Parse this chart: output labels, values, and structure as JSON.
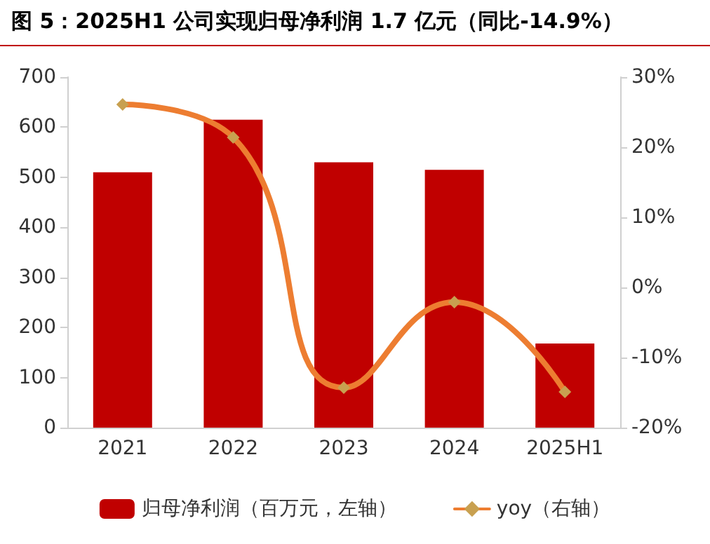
{
  "chart_data": {
    "type": "bar",
    "title": "图 5：2025H1 公司实现归母净利润 1.7 亿元（同比-14.9%）",
    "categories": [
      "2021",
      "2022",
      "2023",
      "2024",
      "2025H1"
    ],
    "series": [
      {
        "name": "归母净利润（百万元，左轴）",
        "color": "#c00000",
        "values": [
          510,
          615,
          530,
          515,
          168
        ]
      },
      {
        "name": "yoy（右轴）",
        "type": "line",
        "axis": "y2",
        "color": "#ed7d31",
        "marker": "diamond",
        "values": [
          26.1,
          21.4,
          -14.3,
          -2.1,
          -14.9
        ]
      }
    ],
    "ylim": [
      0,
      700
    ],
    "yticks": [
      0,
      100,
      200,
      300,
      400,
      500,
      600,
      700
    ],
    "y2lim": [
      -20,
      30
    ],
    "y2ticks": [
      {
        "value": -20,
        "label": "-20%"
      },
      {
        "value": -10,
        "label": "-10%"
      },
      {
        "value": 0,
        "label": "0%"
      },
      {
        "value": 10,
        "label": "10%"
      },
      {
        "value": 20,
        "label": "20%"
      },
      {
        "value": 30,
        "label": "30%"
      }
    ],
    "grid": false,
    "legend": "bottom"
  }
}
